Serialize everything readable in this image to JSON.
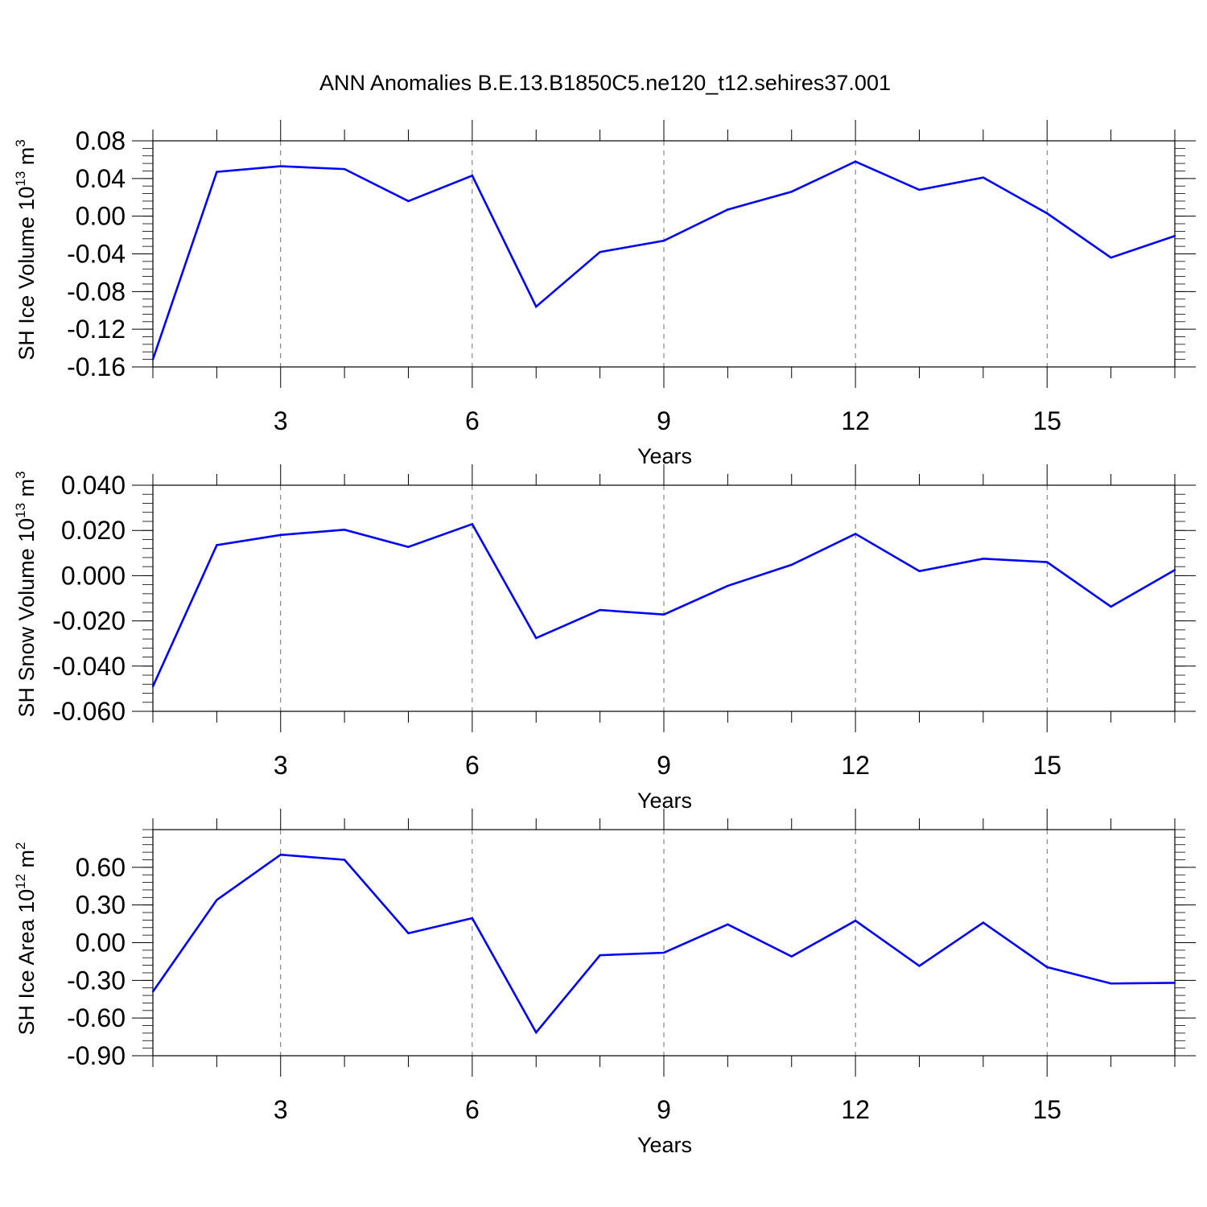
{
  "figure": {
    "title": "ANN Anomalies B.E.13.B1850C5.ne120_t12.sehires37.001"
  },
  "style": {
    "line_color": "#0000ff",
    "axis_color": "#000000",
    "grid_color": "#000000"
  },
  "chart_data": [
    {
      "type": "line",
      "xlabel": "Years",
      "ylabel": {
        "text": "SH Ice Volume 10",
        "exp": "13",
        "unit": " m",
        "unit_exp": "3"
      },
      "xlim": [
        1,
        17
      ],
      "ylim": [
        -0.16,
        0.08
      ],
      "xticks": [
        3,
        6,
        9,
        12,
        15
      ],
      "yticks": [
        -0.16,
        -0.12,
        -0.08,
        -0.04,
        0.0,
        0.04,
        0.08
      ],
      "ytick_labels": [
        "-0.16",
        "-0.12",
        "-0.08",
        "-0.04",
        "0.00",
        "0.04",
        "0.08"
      ],
      "grid": "vertical dashed at major x ticks",
      "series": [
        {
          "x": [
            1,
            2,
            3,
            4,
            5,
            6,
            7,
            8,
            9,
            10,
            11,
            12,
            13,
            14,
            15,
            16,
            17
          ],
          "y": [
            -0.152,
            0.047,
            0.053,
            0.05,
            0.016,
            0.043,
            -0.096,
            -0.038,
            -0.026,
            0.007,
            0.026,
            0.058,
            0.028,
            0.041,
            0.003,
            -0.044,
            -0.021
          ]
        }
      ]
    },
    {
      "type": "line",
      "xlabel": "Years",
      "ylabel": {
        "text": "SH Snow Volume 10",
        "exp": "13",
        "unit": " m",
        "unit_exp": "3"
      },
      "xlim": [
        1,
        17
      ],
      "ylim": [
        -0.06,
        0.04
      ],
      "xticks": [
        3,
        6,
        9,
        12,
        15
      ],
      "yticks": [
        -0.06,
        -0.04,
        -0.02,
        0.0,
        0.02,
        0.04
      ],
      "ytick_labels": [
        "-0.060",
        "-0.040",
        "-0.020",
        "0.000",
        "0.020",
        "0.040"
      ],
      "grid": "vertical dashed at major x ticks",
      "series": [
        {
          "x": [
            1,
            2,
            3,
            4,
            5,
            6,
            7,
            8,
            9,
            10,
            11,
            12,
            13,
            14,
            15,
            16,
            17
          ],
          "y": [
            -0.049,
            0.0135,
            0.018,
            0.0203,
            0.0127,
            0.0228,
            -0.0276,
            -0.0152,
            -0.0172,
            -0.0045,
            0.0048,
            0.0185,
            0.002,
            0.0075,
            0.006,
            -0.0137,
            0.0025
          ]
        }
      ]
    },
    {
      "type": "line",
      "xlabel": "Years",
      "ylabel": {
        "text": "SH Ice Area 10",
        "exp": "12",
        "unit": " m",
        "unit_exp": "2"
      },
      "xlim": [
        1,
        17
      ],
      "ylim": [
        -0.9,
        0.9
      ],
      "xticks": [
        3,
        6,
        9,
        12,
        15
      ],
      "yticks": [
        -0.9,
        -0.6,
        -0.3,
        0.0,
        0.3,
        0.6
      ],
      "ytick_labels": [
        "-0.90",
        "-0.60",
        "-0.30",
        "0.00",
        "0.30",
        "0.60"
      ],
      "grid": "vertical dashed at major x ticks",
      "series": [
        {
          "x": [
            1,
            2,
            3,
            4,
            5,
            6,
            7,
            8,
            9,
            10,
            11,
            12,
            13,
            14,
            15,
            16,
            17
          ],
          "y": [
            -0.39,
            0.34,
            0.7,
            0.66,
            0.075,
            0.195,
            -0.715,
            -0.1,
            -0.08,
            0.145,
            -0.11,
            0.175,
            -0.185,
            0.16,
            -0.195,
            -0.325,
            -0.32
          ]
        }
      ]
    }
  ]
}
